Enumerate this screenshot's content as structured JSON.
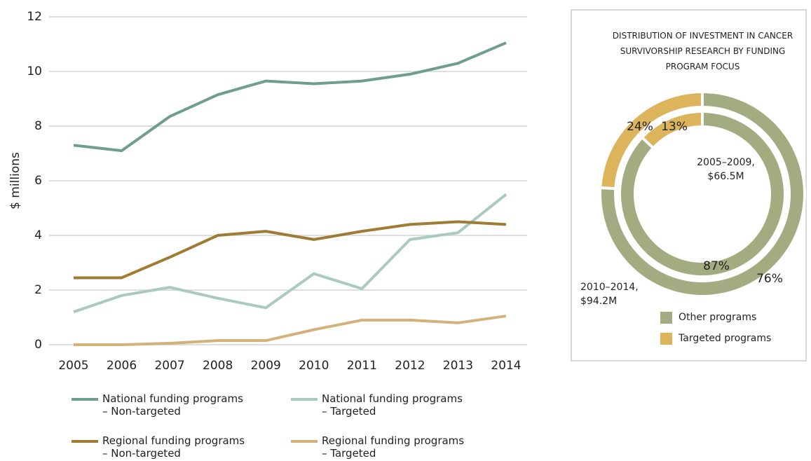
{
  "chart_data": [
    {
      "type": "line",
      "ylabel": "$ millions",
      "categories": [
        "2005",
        "2006",
        "2007",
        "2008",
        "2009",
        "2010",
        "2011",
        "2012",
        "2013",
        "2014"
      ],
      "ylim": [
        0,
        12
      ],
      "yticks": [
        0,
        2,
        4,
        6,
        8,
        10,
        12
      ],
      "grid": true,
      "series": [
        {
          "name": "National funding programs\n– Non-targeted",
          "color": "#6f9e8f",
          "values": [
            7.3,
            7.1,
            8.35,
            9.15,
            9.65,
            9.55,
            9.65,
            9.9,
            10.3,
            11.05
          ]
        },
        {
          "name": "National funding programs\n– Targeted",
          "color": "#a9cbbf",
          "values": [
            1.2,
            1.8,
            2.1,
            1.7,
            1.35,
            2.6,
            2.05,
            3.85,
            4.1,
            5.5
          ]
        },
        {
          "name": "Regional funding programs\n– Non-targeted",
          "color": "#a07b34",
          "values": [
            2.45,
            2.45,
            3.2,
            4.0,
            4.15,
            3.85,
            4.15,
            4.4,
            4.5,
            4.4
          ]
        },
        {
          "name": "Regional funding programs\n– Targeted",
          "color": "#d4b07a",
          "values": [
            0,
            0,
            0.05,
            0.15,
            0.15,
            0.55,
            0.9,
            0.9,
            0.8,
            1.05
          ]
        }
      ]
    },
    {
      "type": "donut",
      "title": "DISTRIBUTION OF INVESTMENT IN CANCER SURVIVORSHIP RESEARCH BY FUNDING PROGRAM FOCUS",
      "categories": [
        "Other programs",
        "Targeted programs"
      ],
      "colors": [
        "#a3ab80",
        "#dbb45c"
      ],
      "rings": [
        {
          "name": "2005–2009,\n$66.5M",
          "values": [
            87,
            13
          ],
          "value_labels": [
            "87%",
            "13%"
          ]
        },
        {
          "name": "2010–2014,\n$94.2M",
          "values": [
            76,
            24
          ],
          "value_labels": [
            "76%",
            "24%"
          ]
        }
      ]
    }
  ]
}
